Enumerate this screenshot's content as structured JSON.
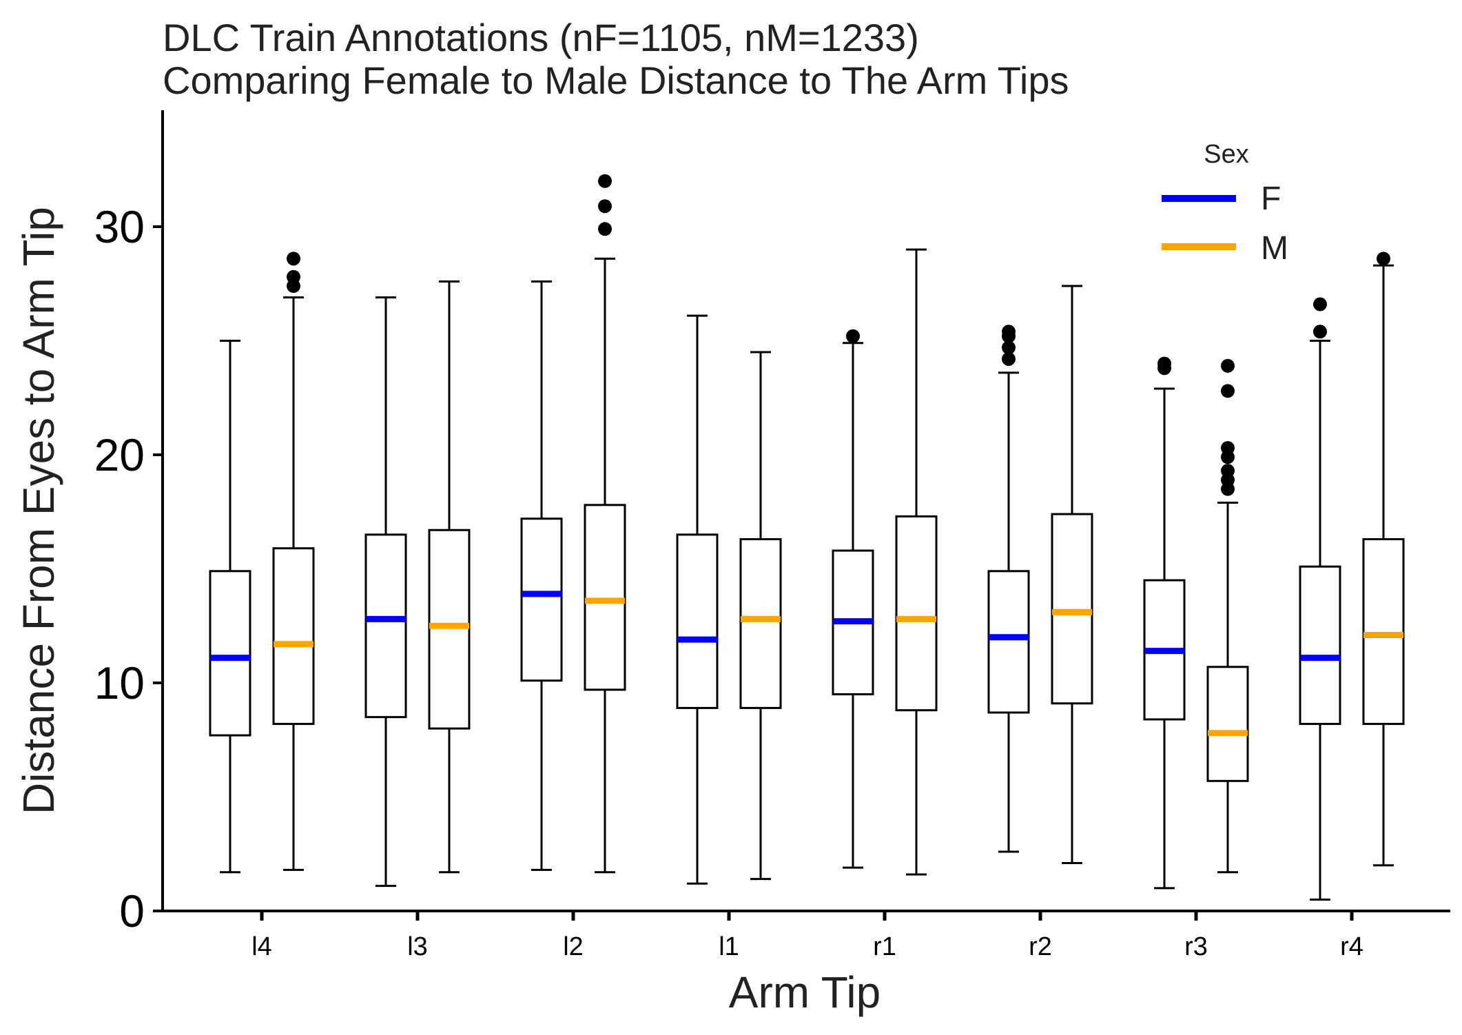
{
  "chart_data": {
    "type": "box",
    "title_lines": [
      "DLC Train Annotations (nF=1105, nM=1233)",
      "Comparing Female to Male Distance to The Arm Tips"
    ],
    "xlabel": "Arm Tip",
    "ylabel": "Distance From Eyes to Arm Tip",
    "ylim": [
      0,
      35
    ],
    "yticks": [
      0,
      10,
      20,
      30
    ],
    "categories": [
      "l4",
      "l3",
      "l2",
      "l1",
      "r1",
      "r2",
      "r3",
      "r4"
    ],
    "legend": {
      "title": "Sex",
      "position": "top-right"
    },
    "grid": false,
    "series": [
      {
        "name": "F",
        "color": "#0000ff",
        "boxes": [
          {
            "whislo": 1.7,
            "q1": 7.7,
            "med": 11.1,
            "q3": 14.9,
            "whishi": 25.0,
            "fliers": []
          },
          {
            "whislo": 1.1,
            "q1": 8.5,
            "med": 12.8,
            "q3": 16.5,
            "whishi": 26.9,
            "fliers": []
          },
          {
            "whislo": 1.8,
            "q1": 10.1,
            "med": 13.9,
            "q3": 17.2,
            "whishi": 27.6,
            "fliers": []
          },
          {
            "whislo": 1.2,
            "q1": 8.9,
            "med": 11.9,
            "q3": 16.5,
            "whishi": 26.1,
            "fliers": []
          },
          {
            "whislo": 1.9,
            "q1": 9.5,
            "med": 12.7,
            "q3": 15.8,
            "whishi": 24.9,
            "fliers": [
              25.2
            ]
          },
          {
            "whislo": 2.6,
            "q1": 8.7,
            "med": 12.0,
            "q3": 14.9,
            "whishi": 23.6,
            "fliers": [
              24.2,
              24.7,
              25.2,
              25.4
            ]
          },
          {
            "whislo": 1.0,
            "q1": 8.4,
            "med": 11.4,
            "q3": 14.5,
            "whishi": 22.9,
            "fliers": [
              23.8,
              24.0
            ]
          },
          {
            "whislo": 0.5,
            "q1": 8.2,
            "med": 11.1,
            "q3": 15.1,
            "whishi": 25.0,
            "fliers": [
              25.4,
              26.6
            ]
          }
        ]
      },
      {
        "name": "M",
        "color": "#ffa500",
        "boxes": [
          {
            "whislo": 1.8,
            "q1": 8.2,
            "med": 11.7,
            "q3": 15.9,
            "whishi": 26.9,
            "fliers": [
              27.4,
              27.8,
              28.6
            ]
          },
          {
            "whislo": 1.7,
            "q1": 8.0,
            "med": 12.5,
            "q3": 16.7,
            "whishi": 27.6,
            "fliers": []
          },
          {
            "whislo": 1.7,
            "q1": 9.7,
            "med": 13.6,
            "q3": 17.8,
            "whishi": 28.6,
            "fliers": [
              29.9,
              30.9,
              32.0
            ]
          },
          {
            "whislo": 1.4,
            "q1": 8.9,
            "med": 12.8,
            "q3": 16.3,
            "whishi": 24.5,
            "fliers": []
          },
          {
            "whislo": 1.6,
            "q1": 8.8,
            "med": 12.8,
            "q3": 17.3,
            "whishi": 29.0,
            "fliers": []
          },
          {
            "whislo": 2.1,
            "q1": 9.1,
            "med": 13.1,
            "q3": 17.4,
            "whishi": 27.4,
            "fliers": []
          },
          {
            "whislo": 1.7,
            "q1": 5.7,
            "med": 7.8,
            "q3": 10.7,
            "whishi": 17.9,
            "fliers": [
              18.5,
              18.9,
              19.3,
              19.9,
              20.3,
              22.8,
              23.9
            ]
          },
          {
            "whislo": 2.0,
            "q1": 8.2,
            "med": 12.1,
            "q3": 16.3,
            "whishi": 28.3,
            "fliers": [
              28.6
            ]
          }
        ]
      }
    ]
  }
}
